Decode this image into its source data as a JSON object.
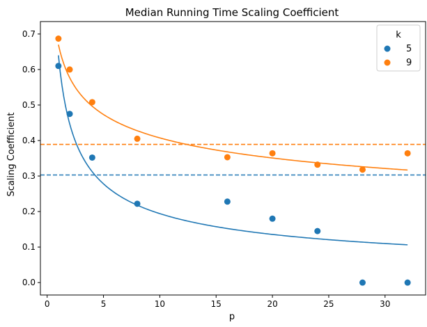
{
  "chart_data": {
    "type": "scatter",
    "title": "Median Running Time Scaling Coefficient",
    "xlabel": "p",
    "ylabel": "Scaling Coefficient",
    "xlim": [
      -0.6,
      33.6
    ],
    "ylim": [
      -0.035,
      0.735
    ],
    "xticks": [
      0,
      5,
      10,
      15,
      20,
      25,
      30
    ],
    "yticks": [
      0.0,
      0.1,
      0.2,
      0.3,
      0.4,
      0.5,
      0.6,
      0.7
    ],
    "grid": false,
    "legend": {
      "title": "k",
      "position": "top-right"
    },
    "series": [
      {
        "name": "5",
        "color": "#1f77b4",
        "points": [
          {
            "x": 1,
            "y": 0.61
          },
          {
            "x": 2,
            "y": 0.475
          },
          {
            "x": 4,
            "y": 0.352
          },
          {
            "x": 8,
            "y": 0.222
          },
          {
            "x": 16,
            "y": 0.228
          },
          {
            "x": 20,
            "y": 0.18
          },
          {
            "x": 24,
            "y": 0.145
          },
          {
            "x": 28,
            "y": 0.0
          },
          {
            "x": 32,
            "y": 0.0
          }
        ],
        "fit": {
          "model": "a*p^b",
          "a": 0.64,
          "b": -0.518,
          "x_range": [
            1,
            32
          ]
        },
        "hline": 0.303
      },
      {
        "name": "9",
        "color": "#ff7f0e",
        "points": [
          {
            "x": 1,
            "y": 0.687
          },
          {
            "x": 2,
            "y": 0.6
          },
          {
            "x": 4,
            "y": 0.508
          },
          {
            "x": 8,
            "y": 0.405
          },
          {
            "x": 16,
            "y": 0.353
          },
          {
            "x": 20,
            "y": 0.364
          },
          {
            "x": 24,
            "y": 0.332
          },
          {
            "x": 28,
            "y": 0.318
          },
          {
            "x": 32,
            "y": 0.364
          }
        ],
        "fit": {
          "model": "a*p^b",
          "a": 0.67,
          "b": -0.216,
          "x_range": [
            1,
            32
          ]
        },
        "hline": 0.389
      }
    ]
  }
}
